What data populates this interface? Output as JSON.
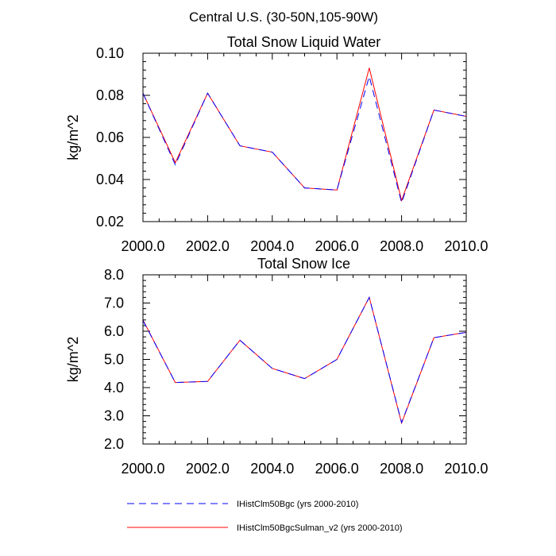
{
  "figure": {
    "title": "Central U.S. (30-50N,105-90W)"
  },
  "legend": {
    "placement": "bottom",
    "entries": [
      {
        "label": "IHistClm50Bgc (yrs 2000-2010)",
        "color": "#0000ff",
        "style": "dashed"
      },
      {
        "label": "IHistClm50BgcSulman_v2 (yrs 2000-2010)",
        "color": "#ff0000",
        "style": "solid"
      }
    ]
  },
  "chart_data": [
    {
      "type": "line",
      "title": "Total Snow Liquid Water",
      "xlabel": "",
      "ylabel": "kg/m^2",
      "xlim": [
        2000,
        2010
      ],
      "ylim": [
        0.02,
        0.1
      ],
      "grid": false,
      "x": [
        2000,
        2001,
        2002,
        2003,
        2004,
        2005,
        2006,
        2007,
        2008,
        2009,
        2010
      ],
      "x_ticks": [
        2000,
        2002,
        2004,
        2006,
        2008,
        2010
      ],
      "x_tick_labels": [
        "2000.0",
        "2002.0",
        "2004.0",
        "2006.0",
        "2008.0",
        "2010.0"
      ],
      "y_ticks": [
        0.02,
        0.04,
        0.06,
        0.08,
        0.1
      ],
      "y_tick_labels": [
        "0.02",
        "0.04",
        "0.06",
        "0.08",
        "0.10"
      ],
      "series": [
        {
          "name": "IHistClm50Bgc (yrs 2000-2010)",
          "color": "#0000ff",
          "dash": "dashed",
          "values": [
            0.081,
            0.047,
            0.081,
            0.056,
            0.053,
            0.036,
            0.035,
            0.089,
            0.029,
            0.073,
            0.07
          ]
        },
        {
          "name": "IHistClm50BgcSulman_v2 (yrs 2000-2010)",
          "color": "#ff0000",
          "dash": "solid",
          "values": [
            0.081,
            0.048,
            0.081,
            0.056,
            0.053,
            0.036,
            0.035,
            0.093,
            0.03,
            0.073,
            0.07
          ]
        }
      ]
    },
    {
      "type": "line",
      "title": "Total Snow Ice",
      "xlabel": "",
      "ylabel": "kg/m^2",
      "xlim": [
        2000,
        2010
      ],
      "ylim": [
        2.0,
        8.0
      ],
      "grid": false,
      "x": [
        2000,
        2001,
        2002,
        2003,
        2004,
        2005,
        2006,
        2007,
        2008,
        2009,
        2010
      ],
      "x_ticks": [
        2000,
        2002,
        2004,
        2006,
        2008,
        2010
      ],
      "x_tick_labels": [
        "2000.0",
        "2002.0",
        "2004.0",
        "2006.0",
        "2008.0",
        "2010.0"
      ],
      "y_ticks": [
        2,
        3,
        4,
        5,
        6,
        7,
        8
      ],
      "y_tick_labels": [
        "2.0",
        "3.0",
        "4.0",
        "5.0",
        "6.0",
        "7.0",
        "8.0"
      ],
      "series": [
        {
          "name": "IHistClm50Bgc (yrs 2000-2010)",
          "color": "#0000ff",
          "dash": "dashed",
          "values": [
            6.38,
            4.18,
            4.22,
            5.68,
            4.68,
            4.32,
            5.0,
            7.2,
            2.76,
            5.77,
            5.96
          ]
        },
        {
          "name": "IHistClm50BgcSulman_v2 (yrs 2000-2010)",
          "color": "#ff0000",
          "dash": "solid",
          "values": [
            6.4,
            4.18,
            4.22,
            5.68,
            4.68,
            4.32,
            5.0,
            7.2,
            2.74,
            5.77,
            5.96
          ]
        }
      ]
    }
  ]
}
